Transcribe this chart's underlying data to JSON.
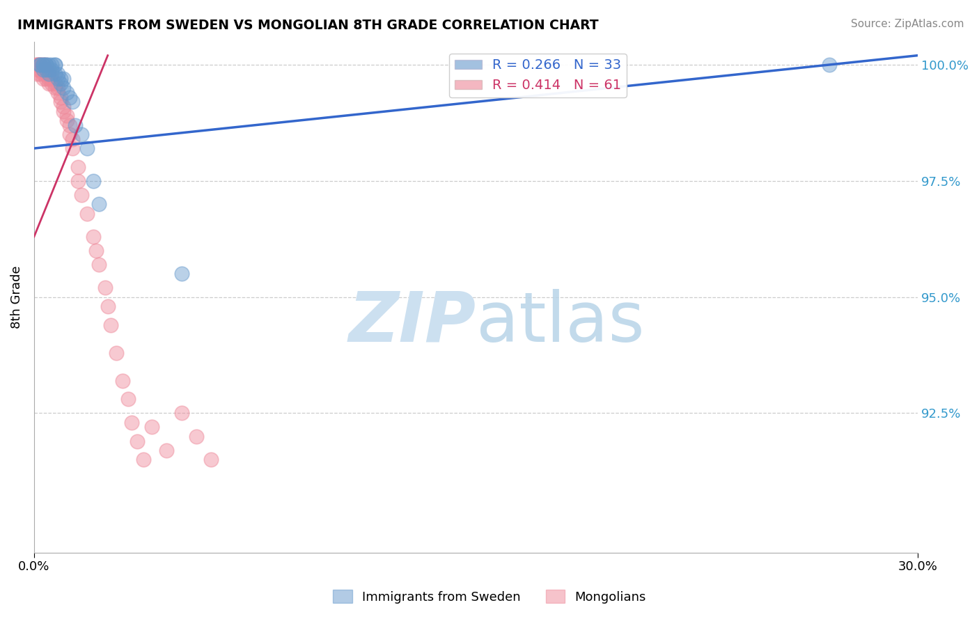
{
  "title": "IMMIGRANTS FROM SWEDEN VS MONGOLIAN 8TH GRADE CORRELATION CHART",
  "source_text": "Source: ZipAtlas.com",
  "ylabel": "8th Grade",
  "xlim": [
    0.0,
    0.3
  ],
  "ylim": [
    0.895,
    1.005
  ],
  "ytick_positions": [
    0.925,
    0.95,
    0.975,
    1.0
  ],
  "ytick_labels": [
    "92.5%",
    "95.0%",
    "97.5%",
    "100.0%"
  ],
  "legend_label1": "Immigrants from Sweden",
  "legend_label2": "Mongolians",
  "blue_dot_color": "#6699cc",
  "pink_dot_color": "#ee8899",
  "blue_line_color": "#3366cc",
  "red_line_color": "#cc3366",
  "watermark_color": "#cce0f0",
  "blue_line_x": [
    0.0,
    0.3
  ],
  "blue_line_y": [
    0.982,
    1.002
  ],
  "red_line_x": [
    0.0,
    0.025
  ],
  "red_line_y": [
    0.963,
    1.002
  ],
  "blue_x": [
    0.002,
    0.002,
    0.003,
    0.003,
    0.003,
    0.004,
    0.004,
    0.004,
    0.005,
    0.005,
    0.005,
    0.006,
    0.006,
    0.007,
    0.007,
    0.007,
    0.008,
    0.008,
    0.009,
    0.009,
    0.01,
    0.01,
    0.011,
    0.012,
    0.013,
    0.014,
    0.016,
    0.018,
    0.02,
    0.022,
    0.05,
    0.27
  ],
  "blue_y": [
    1.0,
    1.0,
    1.0,
    1.0,
    0.999,
    1.0,
    1.0,
    0.999,
    1.0,
    0.999,
    0.998,
    1.0,
    0.999,
    1.0,
    1.0,
    0.998,
    0.998,
    0.997,
    0.997,
    0.996,
    0.997,
    0.995,
    0.994,
    0.993,
    0.992,
    0.987,
    0.985,
    0.982,
    0.975,
    0.97,
    0.955,
    1.0
  ],
  "pink_x": [
    0.001,
    0.001,
    0.001,
    0.001,
    0.001,
    0.002,
    0.002,
    0.002,
    0.002,
    0.002,
    0.003,
    0.003,
    0.003,
    0.003,
    0.003,
    0.004,
    0.004,
    0.004,
    0.004,
    0.005,
    0.005,
    0.005,
    0.005,
    0.006,
    0.006,
    0.006,
    0.007,
    0.007,
    0.008,
    0.008,
    0.009,
    0.009,
    0.01,
    0.01,
    0.011,
    0.011,
    0.012,
    0.012,
    0.013,
    0.013,
    0.015,
    0.015,
    0.016,
    0.018,
    0.02,
    0.021,
    0.022,
    0.024,
    0.025,
    0.026,
    0.028,
    0.03,
    0.032,
    0.033,
    0.035,
    0.037,
    0.04,
    0.045,
    0.05,
    0.055,
    0.06
  ],
  "pink_y": [
    1.0,
    1.0,
    1.0,
    0.999,
    0.998,
    1.0,
    1.0,
    1.0,
    0.999,
    0.998,
    1.0,
    1.0,
    0.999,
    0.998,
    0.997,
    1.0,
    0.999,
    0.998,
    0.997,
    0.999,
    0.998,
    0.997,
    0.996,
    0.998,
    0.997,
    0.996,
    0.996,
    0.995,
    0.995,
    0.994,
    0.993,
    0.992,
    0.991,
    0.99,
    0.989,
    0.988,
    0.987,
    0.985,
    0.984,
    0.982,
    0.978,
    0.975,
    0.972,
    0.968,
    0.963,
    0.96,
    0.957,
    0.952,
    0.948,
    0.944,
    0.938,
    0.932,
    0.928,
    0.923,
    0.919,
    0.915,
    0.922,
    0.917,
    0.925,
    0.92,
    0.915
  ]
}
